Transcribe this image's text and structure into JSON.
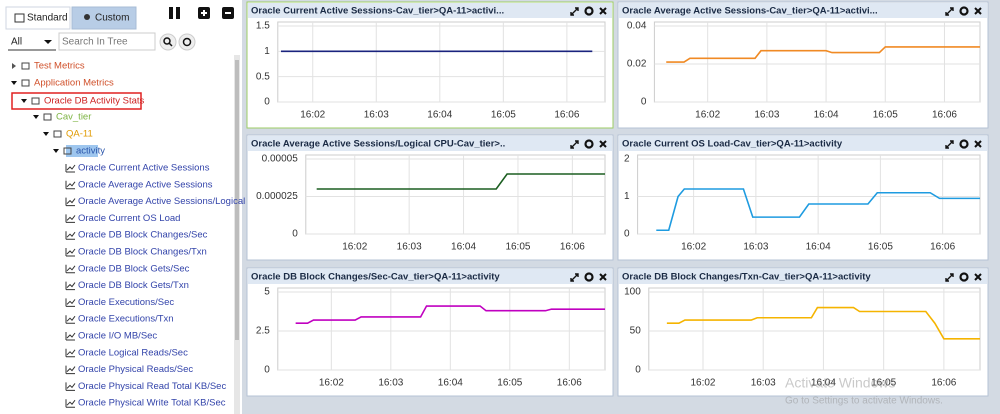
{
  "sidebar": {
    "tabs": [
      "Standard",
      "Custom"
    ],
    "filter": "All",
    "search_placeholder": "Search In Tree",
    "tree": [
      "Test Metrics",
      "Application Metrics",
      "Oracle DB Activity Stats",
      "Cav_tier",
      "QA-11",
      "activity",
      "Oracle Current Active Sessions",
      "Oracle Average Active Sessions",
      "Oracle Average Active Sessions/Logical",
      "Oracle Current OS Load",
      "Oracle DB Block Changes/Sec",
      "Oracle DB Block Changes/Txn",
      "Oracle DB Block Gets/Sec",
      "Oracle DB Block Gets/Txn",
      "Oracle Executions/Sec",
      "Oracle Executions/Txn",
      "Oracle I/O MB/Sec",
      "Oracle Logical Reads/Sec",
      "Oracle Physical Reads/Sec",
      "Oracle Physical Read Total KB/Sec",
      "Oracle Physical Write Total KB/Sec"
    ]
  },
  "chart_data": [
    {
      "type": "line",
      "title": "Oracle Current Active Sessions-Cav_tier>QA-11>activi...",
      "color": "#1a237e",
      "x": [
        1.5,
        6.4
      ],
      "values": [
        1,
        1
      ],
      "xlim": [
        1.45,
        6.6
      ],
      "xticks": [
        {
          "value": 2,
          "label": "16:02"
        },
        {
          "value": 3,
          "label": "16:03"
        },
        {
          "value": 4,
          "label": "16:04"
        },
        {
          "value": 5,
          "label": "16:05"
        },
        {
          "value": 6,
          "label": "16:06"
        }
      ],
      "ylim": [
        0,
        1.5
      ],
      "yticks": [
        0,
        0.5,
        1,
        1.5
      ],
      "grid": true
    },
    {
      "type": "line",
      "title": "Oracle Average Active Sessions-Cav_tier>QA-11>activi...",
      "color": "#f08a24",
      "x": [
        1.3,
        1.6,
        1.7,
        2.8,
        2.9,
        4.0,
        4.1,
        4.9,
        5.0,
        6.6
      ],
      "values": [
        0.021,
        0.021,
        0.023,
        0.023,
        0.027,
        0.027,
        0.026,
        0.026,
        0.029,
        0.029
      ],
      "xlim": [
        1.1,
        6.6
      ],
      "xticks": [
        {
          "value": 2,
          "label": "16:02"
        },
        {
          "value": 3,
          "label": "16:03"
        },
        {
          "value": 4,
          "label": "16:04"
        },
        {
          "value": 5,
          "label": "16:05"
        },
        {
          "value": 6,
          "label": "16:06"
        }
      ],
      "ylim": [
        0,
        0.04
      ],
      "yticks": [
        0,
        0.02,
        0.04
      ],
      "grid": true
    },
    {
      "type": "line",
      "title": "Oracle Average Active Sessions/Logical CPU-Cav_tier>..",
      "color": "#1b5e20",
      "x": [
        1.3,
        4.6,
        4.8,
        6.6
      ],
      "values": [
        3e-05,
        3e-05,
        4e-05,
        4e-05
      ],
      "xlim": [
        1.1,
        6.6
      ],
      "xticks": [
        {
          "value": 2,
          "label": "16:02"
        },
        {
          "value": 3,
          "label": "16:03"
        },
        {
          "value": 4,
          "label": "16:04"
        },
        {
          "value": 5,
          "label": "16:05"
        },
        {
          "value": 6,
          "label": "16:06"
        }
      ],
      "ylim": [
        0,
        5e-05
      ],
      "yticks": [
        0,
        2.5e-05,
        5e-05
      ],
      "grid": true
    },
    {
      "type": "line",
      "title": "Oracle Current OS Load-Cav_tier>QA-11>activity",
      "color": "#1e9be0",
      "x": [
        1.4,
        1.6,
        1.75,
        1.85,
        2.8,
        2.95,
        3.7,
        3.85,
        4.8,
        4.95,
        5.8,
        5.95,
        6.6
      ],
      "values": [
        0.1,
        0.1,
        1.0,
        1.2,
        1.2,
        0.45,
        0.45,
        0.8,
        0.8,
        1.1,
        1.1,
        0.95,
        0.95
      ],
      "xlim": [
        1.1,
        6.6
      ],
      "xticks": [
        {
          "value": 2,
          "label": "16:02"
        },
        {
          "value": 3,
          "label": "16:03"
        },
        {
          "value": 4,
          "label": "16:04"
        },
        {
          "value": 5,
          "label": "16:05"
        },
        {
          "value": 6,
          "label": "16:06"
        }
      ],
      "ylim": [
        0,
        2
      ],
      "yticks": [
        0,
        1,
        2
      ],
      "grid": true
    },
    {
      "type": "line",
      "title": "Oracle DB Block Changes/Sec-Cav_tier>QA-11>activity",
      "color": "#c000c0",
      "x": [
        1.4,
        1.6,
        1.7,
        2.4,
        2.5,
        3.5,
        3.6,
        4.5,
        4.6,
        5.6,
        5.7,
        6.6
      ],
      "values": [
        3.0,
        3.0,
        3.2,
        3.2,
        3.4,
        3.4,
        4.1,
        4.1,
        3.8,
        3.8,
        3.9,
        3.9
      ],
      "xlim": [
        1.1,
        6.6
      ],
      "xticks": [
        {
          "value": 2,
          "label": "16:02"
        },
        {
          "value": 3,
          "label": "16:03"
        },
        {
          "value": 4,
          "label": "16:04"
        },
        {
          "value": 5,
          "label": "16:05"
        },
        {
          "value": 6,
          "label": "16:06"
        }
      ],
      "ylim": [
        0,
        5
      ],
      "yticks": [
        0,
        2.5,
        5
      ],
      "grid": true
    },
    {
      "type": "line",
      "title": "Oracle DB Block Changes/Txn-Cav_tier>QA-11>activity",
      "color": "#f5b400",
      "x": [
        1.4,
        1.6,
        1.7,
        2.8,
        2.9,
        3.8,
        3.9,
        4.5,
        4.6,
        5.7,
        5.85,
        6.0,
        6.6
      ],
      "values": [
        60,
        60,
        64,
        64,
        67,
        67,
        80,
        80,
        75,
        75,
        60,
        40,
        40
      ],
      "xlim": [
        1.1,
        6.6
      ],
      "xticks": [
        {
          "value": 2,
          "label": "16:02"
        },
        {
          "value": 3,
          "label": "16:03"
        },
        {
          "value": 4,
          "label": "16:04"
        },
        {
          "value": 5,
          "label": "16:05"
        },
        {
          "value": 6,
          "label": "16:06"
        }
      ],
      "ylim": [
        0,
        100
      ],
      "yticks": [
        0,
        50,
        100
      ],
      "grid": true
    }
  ],
  "watermark": {
    "title": "Activate Windows",
    "subtitle": "Go to Settings to activate Windows."
  }
}
